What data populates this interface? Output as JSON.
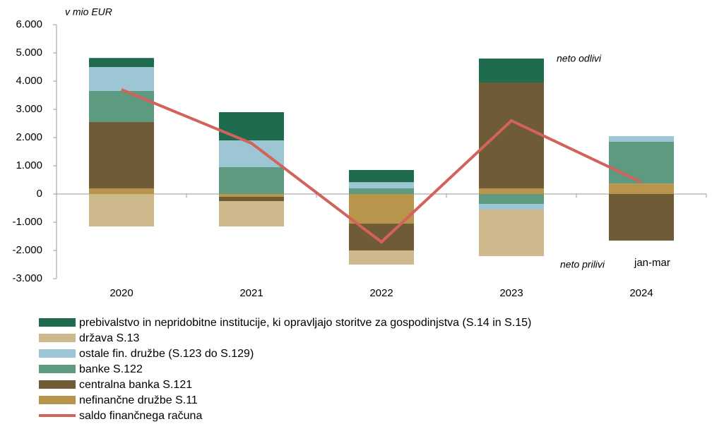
{
  "chart_data": {
    "type": "bar",
    "stacked": true,
    "categories": [
      "2020",
      "2021",
      "2022",
      "2023",
      "2024"
    ],
    "annotations": [
      "v mio EUR",
      "neto odlivi",
      "neto prilivi",
      "jan-mar"
    ],
    "ylim": [
      -3000,
      6000
    ],
    "yticks": [
      {
        "value": -3000,
        "label": "-3.000"
      },
      {
        "value": -2000,
        "label": "-2.000"
      },
      {
        "value": -1000,
        "label": "-1.000"
      },
      0,
      {
        "value": 1000,
        "label": "1.000"
      },
      {
        "value": 2000,
        "label": "2.000"
      },
      {
        "value": 3000,
        "label": "3.000"
      },
      {
        "value": 4000,
        "label": "4.000"
      },
      {
        "value": 5000,
        "label": "5.000"
      },
      {
        "value": 6000,
        "label": "6.000"
      }
    ],
    "grid": false,
    "series": [
      {
        "name": "prebivalstvo in nepridobitne institucije, ki opravljajo storitve za gospodinjstva (S.14 in S.15)",
        "type": "bar",
        "color": "#1e6b4e",
        "values": [
          320,
          1000,
          430,
          850,
          0
        ]
      },
      {
        "name": "država S.13",
        "type": "bar",
        "color": "#cdb98b",
        "values": [
          -1150,
          -900,
          -500,
          -1650,
          0
        ]
      },
      {
        "name": "ostale fin. družbe (S.123 do S.129)",
        "type": "bar",
        "color": "#9cc6d4",
        "values": [
          850,
          950,
          220,
          -200,
          200
        ]
      },
      {
        "name": "banke S.122",
        "type": "bar",
        "color": "#5e9a80",
        "values": [
          1100,
          950,
          200,
          -350,
          1480
        ]
      },
      {
        "name": "centralna banka S.121",
        "type": "bar",
        "color": "#6f5c36",
        "values": [
          2350,
          -150,
          -950,
          3750,
          -1650
        ]
      },
      {
        "name": "nefinančne družbe S.11",
        "type": "bar",
        "color": "#b8954a",
        "values": [
          200,
          -100,
          -1050,
          200,
          370
        ]
      },
      {
        "name": "saldo finančnega računa",
        "type": "line",
        "color": "#d2625a",
        "values": [
          3700,
          1800,
          -1700,
          2600,
          420
        ]
      }
    ]
  }
}
